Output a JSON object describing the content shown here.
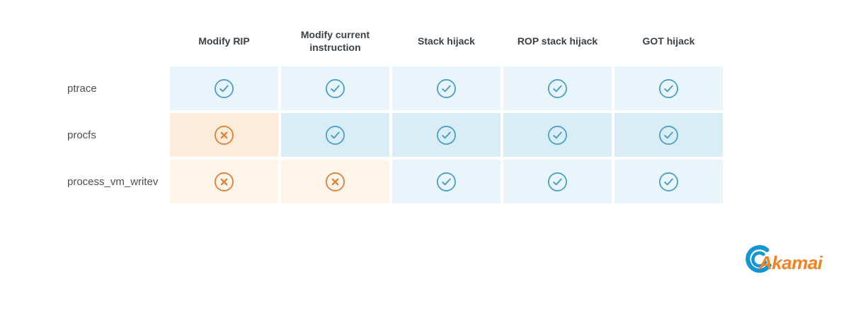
{
  "chart_data": {
    "type": "table",
    "columns": [
      "Modify RIP",
      "Modify current instruction",
      "Stack hijack",
      "ROP stack hijack",
      "GOT hijack"
    ],
    "rows": [
      {
        "label": "ptrace",
        "values": [
          "check-circle",
          "check-circle",
          "check-circle",
          "check-circle",
          "check-circle"
        ]
      },
      {
        "label": "procfs",
        "values": [
          "x-circle",
          "check-circle",
          "check-circle",
          "check-circle",
          "check-circle"
        ]
      },
      {
        "label": "process_vm_writev",
        "values": [
          "x-circle",
          "x-circle",
          "check-circle",
          "check-circle",
          "check-circle"
        ]
      }
    ],
    "row_shades": [
      "light",
      "dark",
      "light"
    ],
    "legend_position": "none",
    "grid": "off"
  },
  "colors": {
    "check_icon": "#4ba1c9",
    "cross_icon": "#df8138",
    "cell_check_light": "#eaf5fb",
    "cell_check_dark": "#d9edf6",
    "cell_cross_light": "#fdf4ea",
    "cell_cross_dark": "#fcecd9",
    "header_text": "#3c4146",
    "label_text": "#4c5054",
    "logo_orange": "#f58220",
    "logo_blue": "#1095d5"
  },
  "logo": {
    "text": "Akamai"
  }
}
